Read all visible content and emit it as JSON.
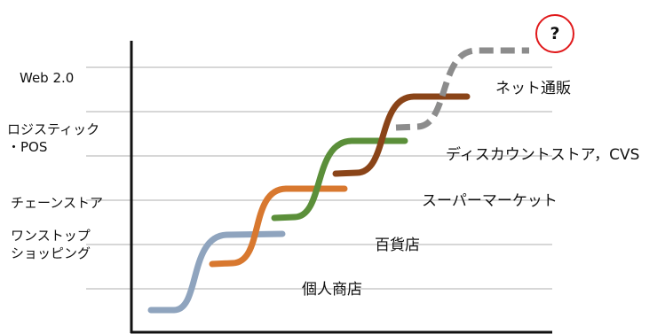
{
  "left_labels": [
    {
      "id": "web2",
      "text": "Web 2.0"
    },
    {
      "id": "logistics",
      "text": "ロジスティック\n・POS"
    },
    {
      "id": "chain",
      "text": "チェーンストア"
    },
    {
      "id": "onestop",
      "text": "ワンストップ\nショッピング"
    }
  ],
  "stage_labels": [
    {
      "id": "mailorder",
      "text": "ネット通販"
    },
    {
      "id": "discount",
      "text": "ディスカウントストア，CVS"
    },
    {
      "id": "supermarket",
      "text": "スーパーマーケット"
    },
    {
      "id": "department",
      "text": "百貨店"
    },
    {
      "id": "individual",
      "text": "個人商店"
    }
  ],
  "unknown_marker": "?",
  "colors": {
    "axis": "#111111",
    "gridline": "#bfbfbf",
    "individual": "#8fa4be",
    "department": "#d8782f",
    "supermarket": "#5b8f3a",
    "discount": "#8a4418",
    "mailorder": "#8c8c8c",
    "marker_circle": "#e0191b"
  },
  "curves": [
    {
      "id": "individual-curve",
      "color_key": "individual",
      "dashed": false
    },
    {
      "id": "department-curve",
      "color_key": "department",
      "dashed": false
    },
    {
      "id": "supermarket-curve",
      "color_key": "supermarket",
      "dashed": false
    },
    {
      "id": "discount-curve",
      "color_key": "discount",
      "dashed": false
    },
    {
      "id": "mailorder-curve",
      "color_key": "mailorder",
      "dashed": true
    }
  ]
}
